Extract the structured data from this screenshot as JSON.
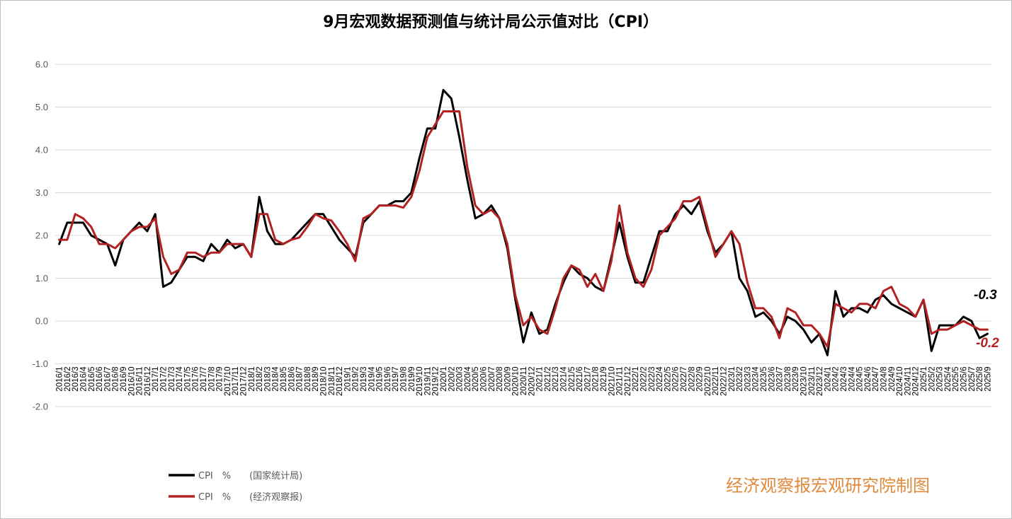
{
  "colors": {
    "nbs": "#000000",
    "eeo": "#b22222",
    "grid": "#d9d9d9",
    "credit": "#e08a3c"
  },
  "chart_data": {
    "type": "line",
    "title": "9月宏观数据预测值与统计局公示值对比（CPI）",
    "ylim": [
      -2.0,
      6.0
    ],
    "yticks": [
      "6.0",
      "5.0",
      "4.0",
      "3.0",
      "2.0",
      "1.0",
      "0.0",
      "-1.0",
      "-2.0"
    ],
    "grid": true,
    "legend_position": "bottom-left",
    "categories": [
      "2016/1",
      "2016/2",
      "2016/3",
      "2016/4",
      "2016/5",
      "2016/6",
      "2016/7",
      "2016/8",
      "2016/9",
      "2016/10",
      "2016/11",
      "2016/12",
      "2017/1",
      "2017/2",
      "2017/3",
      "2017/4",
      "2017/5",
      "2017/6",
      "2017/7",
      "2017/8",
      "2017/9",
      "2017/10",
      "2017/11",
      "2017/12",
      "2018/1",
      "2018/2",
      "2018/3",
      "2018/4",
      "2018/5",
      "2018/6",
      "2018/7",
      "2018/8",
      "2018/9",
      "2018/10",
      "2018/11",
      "2018/12",
      "2019/1",
      "2019/2",
      "2019/3",
      "2019/4",
      "2019/5",
      "2019/6",
      "2019/7",
      "2019/8",
      "2019/9",
      "2019/10",
      "2019/11",
      "2019/12",
      "2020/1",
      "2020/2",
      "2020/3",
      "2020/4",
      "2020/5",
      "2020/6",
      "2020/7",
      "2020/8",
      "2020/9",
      "2020/10",
      "2020/11",
      "2020/12",
      "2021/1",
      "2021/2",
      "2021/3",
      "2021/4",
      "2021/5",
      "2021/6",
      "2021/7",
      "2021/8",
      "2021/9",
      "2021/10",
      "2021/11",
      "2021/12",
      "2022/1",
      "2022/2",
      "2022/3",
      "2022/4",
      "2022/5",
      "2022/6",
      "2022/7",
      "2022/8",
      "2022/9",
      "2022/10",
      "2022/11",
      "2022/12",
      "2023/1",
      "2023/2",
      "2023/3",
      "2023/4",
      "2023/5",
      "2023/6",
      "2023/7",
      "2023/8",
      "2023/9",
      "2023/10",
      "2023/11",
      "2023/12",
      "2024/1",
      "2024/2",
      "2024/3",
      "2024/4",
      "2024/5",
      "2024/6",
      "2024/7",
      "2024/8",
      "2024/9",
      "2024/10",
      "2024/11",
      "2024/12",
      "2025/1",
      "2025/2",
      "2025/3",
      "2025/4",
      "2025/5",
      "2025/6",
      "2025/7",
      "2025/8",
      "2025/9"
    ],
    "series": [
      {
        "name": "CPI　%　　(国家统计局)",
        "values": [
          1.8,
          2.3,
          2.3,
          2.3,
          2.0,
          1.9,
          1.8,
          1.3,
          1.9,
          2.1,
          2.3,
          2.1,
          2.5,
          0.8,
          0.9,
          1.2,
          1.5,
          1.5,
          1.4,
          1.8,
          1.6,
          1.9,
          1.7,
          1.8,
          1.5,
          2.9,
          2.1,
          1.8,
          1.8,
          1.9,
          2.1,
          2.3,
          2.5,
          2.5,
          2.2,
          1.9,
          1.7,
          1.5,
          2.3,
          2.5,
          2.7,
          2.7,
          2.8,
          2.8,
          3.0,
          3.8,
          4.5,
          4.5,
          5.4,
          5.2,
          4.3,
          3.3,
          2.4,
          2.5,
          2.7,
          2.4,
          1.7,
          0.5,
          -0.5,
          0.2,
          -0.3,
          -0.2,
          0.4,
          0.9,
          1.3,
          1.1,
          1.0,
          0.8,
          0.7,
          1.5,
          2.3,
          1.5,
          0.9,
          0.9,
          1.5,
          2.1,
          2.1,
          2.5,
          2.7,
          2.5,
          2.8,
          2.1,
          1.6,
          1.8,
          2.1,
          1.0,
          0.7,
          0.1,
          0.2,
          0.0,
          -0.3,
          0.1,
          0.0,
          -0.2,
          -0.5,
          -0.3,
          -0.8,
          0.7,
          0.1,
          0.3,
          0.3,
          0.2,
          0.5,
          0.6,
          0.4,
          0.3,
          0.2,
          0.1,
          0.5,
          -0.7,
          -0.1,
          -0.1,
          -0.1,
          0.1,
          0.0,
          -0.4,
          -0.3
        ]
      },
      {
        "name": "CPI　%　　(经济观察报)",
        "values": [
          1.9,
          1.9,
          2.5,
          2.4,
          2.2,
          1.8,
          1.8,
          1.7,
          1.9,
          2.1,
          2.2,
          2.2,
          2.4,
          1.5,
          1.1,
          1.2,
          1.6,
          1.6,
          1.5,
          1.6,
          1.6,
          1.8,
          1.8,
          1.8,
          1.5,
          2.5,
          2.5,
          1.9,
          1.8,
          1.9,
          1.95,
          2.2,
          2.5,
          2.4,
          2.35,
          2.1,
          1.8,
          1.4,
          2.4,
          2.5,
          2.7,
          2.7,
          2.7,
          2.65,
          2.9,
          3.5,
          4.3,
          4.6,
          4.9,
          4.9,
          4.9,
          3.6,
          2.7,
          2.5,
          2.6,
          2.4,
          1.8,
          0.6,
          -0.1,
          0.1,
          -0.2,
          -0.3,
          0.3,
          1.0,
          1.3,
          1.2,
          0.8,
          1.1,
          0.7,
          1.4,
          2.7,
          1.6,
          1.0,
          0.8,
          1.2,
          2.0,
          2.2,
          2.4,
          2.8,
          2.8,
          2.9,
          2.2,
          1.5,
          1.8,
          2.1,
          1.8,
          0.9,
          0.3,
          0.3,
          0.1,
          -0.4,
          0.3,
          0.2,
          -0.1,
          -0.1,
          -0.3,
          -0.6,
          0.4,
          0.3,
          0.2,
          0.4,
          0.4,
          0.3,
          0.7,
          0.8,
          0.4,
          0.3,
          0.1,
          0.5,
          -0.3,
          -0.2,
          -0.2,
          -0.1,
          0.0,
          -0.1,
          -0.2,
          -0.2
        ]
      }
    ],
    "end_labels": [
      "-0.3",
      "-0.2"
    ]
  },
  "credit": "经济观察报宏观研究院制图"
}
